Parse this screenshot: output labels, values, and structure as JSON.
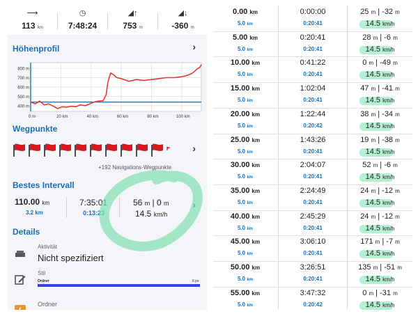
{
  "stats": [
    {
      "icon": "distance-arrow-icon",
      "symbol": "⟶",
      "value": "113",
      "unit": "km"
    },
    {
      "icon": "clock-icon",
      "symbol": "◷",
      "value": "7:48:24",
      "unit": ""
    },
    {
      "icon": "ascent-icon",
      "symbol": "◢↑",
      "value": "753",
      "unit": "m"
    },
    {
      "icon": "descent-icon",
      "symbol": "◢↓",
      "value": "-360",
      "unit": "m"
    }
  ],
  "profile": {
    "title": "Höhenprofil",
    "y_ticks": [
      "800 m",
      "700 m",
      "600 m",
      "500 m",
      "400 m"
    ],
    "x_ticks": [
      "0 m",
      "20 km",
      "40 km",
      "60 km",
      "80 km",
      "100 km"
    ]
  },
  "chart_data": {
    "type": "line",
    "title": "Höhenprofil",
    "xlabel": "",
    "ylabel": "",
    "x_unit": "km",
    "y_unit": "m",
    "xlim": [
      0,
      113
    ],
    "ylim": [
      340,
      860
    ],
    "grid": true,
    "series": [
      {
        "x": [
          0,
          3,
          6,
          9,
          12,
          15,
          18,
          21,
          24,
          27,
          30,
          33,
          36,
          39,
          42,
          45,
          48,
          50,
          51,
          52,
          53,
          55,
          57,
          60,
          65,
          70,
          75,
          80,
          85,
          90,
          95,
          100,
          103,
          106,
          108,
          110,
          112,
          113
        ],
        "y": [
          440,
          420,
          450,
          410,
          420,
          395,
          370,
          390,
          385,
          395,
          390,
          410,
          400,
          420,
          440,
          450,
          455,
          520,
          640,
          700,
          750,
          730,
          700,
          690,
          660,
          680,
          670,
          680,
          690,
          700,
          700,
          710,
          720,
          740,
          760,
          790,
          810,
          840
        ]
      }
    ],
    "reference_line": {
      "y": 440,
      "color": "#1a6fb8"
    }
  },
  "waypoints": {
    "title": "Wegpunkte",
    "flag_count": 10,
    "note": "+192 Navigations-Wegpunkte"
  },
  "best_interval": {
    "title": "Bestes Intervall",
    "distance": "110.00",
    "distance_unit": "km",
    "segment": "3.2",
    "segment_unit": "km",
    "time": "7:35:01",
    "segment_time": "0:13:23",
    "elev_up": "56",
    "elev_down": "0",
    "elev_unit": "m",
    "speed": "14.5",
    "speed_unit": "km/h"
  },
  "details": {
    "title": "Details",
    "activity_label": "Aktivität",
    "activity_value": "Nicht spezifiziert",
    "style_label": "Stil",
    "style_folder": "Ordner",
    "style_px": "6 px",
    "style_color": "#3b44d6",
    "folder_label": "Ordner"
  },
  "colors": {
    "accent": "#1a6fb8",
    "profile_line": "#e53935",
    "highlight": "#a7edc9",
    "annotation": "#7fe0b0"
  },
  "intervals": [
    {
      "km": "0.00",
      "seg": "5.0",
      "time": "0:00:00",
      "seg_time": "0:20:41",
      "up": "25",
      "down": "-32",
      "speed": "14.5"
    },
    {
      "km": "5.00",
      "seg": "5.0",
      "time": "0:20:41",
      "seg_time": "0:20:41",
      "up": "28",
      "down": "-6",
      "speed": "14.5"
    },
    {
      "km": "10.00",
      "seg": "5.0",
      "time": "0:41:22",
      "seg_time": "0:20:41",
      "up": "0",
      "down": "-49",
      "speed": "14.5"
    },
    {
      "km": "15.00",
      "seg": "5.0",
      "time": "1:02:04",
      "seg_time": "0:20:41",
      "up": "47",
      "down": "-41",
      "speed": "14.5"
    },
    {
      "km": "20.00",
      "seg": "5.0",
      "time": "1:22:44",
      "seg_time": "0:20:42",
      "up": "38",
      "down": "-34",
      "speed": "14.5"
    },
    {
      "km": "25.00",
      "seg": "5.0",
      "time": "1:43:26",
      "seg_time": "0:20:41",
      "up": "19",
      "down": "-38",
      "speed": "14.5"
    },
    {
      "km": "30.00",
      "seg": "5.0",
      "time": "2:04:07",
      "seg_time": "0:20:41",
      "up": "52",
      "down": "-6",
      "speed": "14.5"
    },
    {
      "km": "35.00",
      "seg": "5.0",
      "time": "2:24:49",
      "seg_time": "0:20:41",
      "up": "24",
      "down": "-12",
      "speed": "14.5"
    },
    {
      "km": "40.00",
      "seg": "5.0",
      "time": "2:45:29",
      "seg_time": "0:20:41",
      "up": "24",
      "down": "-12",
      "speed": "14.5"
    },
    {
      "km": "45.00",
      "seg": "5.0",
      "time": "3:06:10",
      "seg_time": "0:20:41",
      "up": "171",
      "down": "-7",
      "speed": "14.5"
    },
    {
      "km": "50.00",
      "seg": "5.0",
      "time": "3:26:51",
      "seg_time": "0:20:41",
      "up": "135",
      "down": "-51",
      "speed": "14.5"
    },
    {
      "km": "55.00",
      "seg": "5.0",
      "time": "3:47:32",
      "seg_time": "0:20:42",
      "up": "0",
      "down": "-31",
      "speed": "14.5"
    }
  ],
  "units": {
    "km": "km",
    "m": "m",
    "kmh": "km/h"
  }
}
